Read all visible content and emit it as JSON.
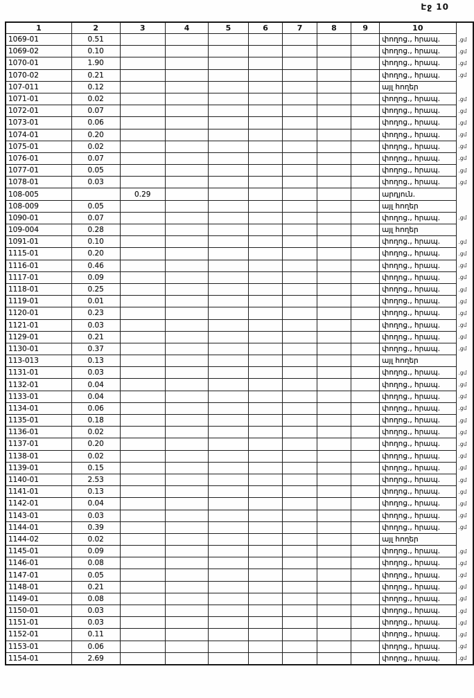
{
  "page": {
    "label": "Էջ 10"
  },
  "table": {
    "headers": [
      "1",
      "2",
      "3",
      "4",
      "5",
      "6",
      "7",
      "8",
      "9",
      "10"
    ],
    "rows": [
      {
        "code": "1069-01",
        "area": "0.51",
        "area3": "",
        "land": "փողոց., հրապ.",
        "edge": ".ցմ"
      },
      {
        "code": "1069-02",
        "area": "0.10",
        "area3": "",
        "land": "փողոց., հրապ.",
        "edge": ".ցմ"
      },
      {
        "code": "1070-01",
        "area": "1.90",
        "area3": "",
        "land": "փողոց., հրապ.",
        "edge": ".ցմ"
      },
      {
        "code": "1070-02",
        "area": "0.21",
        "area3": "",
        "land": "փողոց., հրապ.",
        "edge": ".ցմ"
      },
      {
        "code": "107-011",
        "area": "0.12",
        "area3": "",
        "land": "այլ հողեր",
        "edge": ""
      },
      {
        "code": "1071-01",
        "area": "0.02",
        "area3": "",
        "land": "փողոց., հրապ.",
        "edge": ".ցմ"
      },
      {
        "code": "1072-01",
        "area": "0.07",
        "area3": "",
        "land": "փողոց., հրապ.",
        "edge": ".ցմ"
      },
      {
        "code": "1073-01",
        "area": "0.06",
        "area3": "",
        "land": "փողոց., հրապ.",
        "edge": ".ցմ"
      },
      {
        "code": "1074-01",
        "area": "0.20",
        "area3": "",
        "land": "փողոց., հրապ.",
        "edge": ".ցմ"
      },
      {
        "code": "1075-01",
        "area": "0.02",
        "area3": "",
        "land": "փողոց., հրապ.",
        "edge": ".ցմ"
      },
      {
        "code": "1076-01",
        "area": "0.07",
        "area3": "",
        "land": "փողոց., հրապ.",
        "edge": ".ցմ"
      },
      {
        "code": "1077-01",
        "area": "0.05",
        "area3": "",
        "land": "փողոց., հրապ.",
        "edge": ".ցմ"
      },
      {
        "code": "1078-01",
        "area": "0.03",
        "area3": "",
        "land": "փողոց., հրապ.",
        "edge": ".ցմ"
      },
      {
        "code": "108-005",
        "area": "",
        "area3": "0.29",
        "land": "արդյուն.",
        "edge": ""
      },
      {
        "code": "108-009",
        "area": "0.05",
        "area3": "",
        "land": "այլ հողեր",
        "edge": ""
      },
      {
        "code": "1090-01",
        "area": "0.07",
        "area3": "",
        "land": "փողոց., հրապ.",
        "edge": ".ցմ"
      },
      {
        "code": "109-004",
        "area": "0.28",
        "area3": "",
        "land": "այլ հողեր",
        "edge": ""
      },
      {
        "code": "1091-01",
        "area": "0.10",
        "area3": "",
        "land": "փողոց., հրապ.",
        "edge": ".ցմ"
      },
      {
        "code": "1115-01",
        "area": "0.20",
        "area3": "",
        "land": "փողոց., հրապ.",
        "edge": ".ցմ"
      },
      {
        "code": "1116-01",
        "area": "0.46",
        "area3": "",
        "land": "փողոց., հրապ.",
        "edge": ".ցմ"
      },
      {
        "code": "1117-01",
        "area": "0.09",
        "area3": "",
        "land": "փողոց., հրապ.",
        "edge": ".ցմ"
      },
      {
        "code": "1118-01",
        "area": "0.25",
        "area3": "",
        "land": "փողոց., հրապ.",
        "edge": ".ցմ"
      },
      {
        "code": "1119-01",
        "area": "0.01",
        "area3": "",
        "land": "փողոց., հրապ.",
        "edge": ".ցմ"
      },
      {
        "code": "1120-01",
        "area": "0.23",
        "area3": "",
        "land": "փողոց., հրապ.",
        "edge": ".ցմ"
      },
      {
        "code": "1121-01",
        "area": "0.03",
        "area3": "",
        "land": "փողոց., հրապ.",
        "edge": ".ցմ"
      },
      {
        "code": "1129-01",
        "area": "0.21",
        "area3": "",
        "land": "փողոց., հրապ.",
        "edge": ".ցմ"
      },
      {
        "code": "1130-01",
        "area": "0.37",
        "area3": "",
        "land": "փողոց., հրապ.",
        "edge": ".ցմ"
      },
      {
        "code": "113-013",
        "area": "0.13",
        "area3": "",
        "land": "այլ հողեր",
        "edge": ""
      },
      {
        "code": "1131-01",
        "area": "0.03",
        "area3": "",
        "land": "փողոց., հրապ.",
        "edge": ".ցմ"
      },
      {
        "code": "1132-01",
        "area": "0.04",
        "area3": "",
        "land": "փողոց., հրապ.",
        "edge": ".ցմ"
      },
      {
        "code": "1133-01",
        "area": "0.04",
        "area3": "",
        "land": "փողոց., հրապ.",
        "edge": ".ցմ"
      },
      {
        "code": "1134-01",
        "area": "0.06",
        "area3": "",
        "land": "փողոց., հրապ.",
        "edge": ".ցմ"
      },
      {
        "code": "1135-01",
        "area": "0.18",
        "area3": "",
        "land": "փողոց., հրապ.",
        "edge": ".ցմ"
      },
      {
        "code": "1136-01",
        "area": "0.02",
        "area3": "",
        "land": "փողոց., հրապ.",
        "edge": ".ցմ"
      },
      {
        "code": "1137-01",
        "area": "0.20",
        "area3": "",
        "land": "փողոց., հրապ.",
        "edge": ".ցմ"
      },
      {
        "code": "1138-01",
        "area": "0.02",
        "area3": "",
        "land": "փողոց., հրապ.",
        "edge": ".ցմ"
      },
      {
        "code": "1139-01",
        "area": "0.15",
        "area3": "",
        "land": "փողոց., հրապ.",
        "edge": ".ցմ"
      },
      {
        "code": "1140-01",
        "area": "2.53",
        "area3": "",
        "land": "փողոց., հրապ.",
        "edge": ".ցմ"
      },
      {
        "code": "1141-01",
        "area": "0.13",
        "area3": "",
        "land": "փողոց., հրապ.",
        "edge": ".ցմ"
      },
      {
        "code": "1142-01",
        "area": "0.04",
        "area3": "",
        "land": "փողոց., հրապ.",
        "edge": ".ցմ"
      },
      {
        "code": "1143-01",
        "area": "0.03",
        "area3": "",
        "land": "փողոց., հրապ.",
        "edge": ".ցմ"
      },
      {
        "code": "1144-01",
        "area": "0.39",
        "area3": "",
        "land": "փողոց., հրապ.",
        "edge": ".ցմ"
      },
      {
        "code": "1144-02",
        "area": "0.02",
        "area3": "",
        "land": "այլ հողեր",
        "edge": ""
      },
      {
        "code": "1145-01",
        "area": "0.09",
        "area3": "",
        "land": "փողոց., հրապ.",
        "edge": ".ցմ"
      },
      {
        "code": "1146-01",
        "area": "0.08",
        "area3": "",
        "land": "փողոց., հրապ.",
        "edge": ".ցմ"
      },
      {
        "code": "1147-01",
        "area": "0.05",
        "area3": "",
        "land": "փողոց., հրապ.",
        "edge": ".ցմ"
      },
      {
        "code": "1148-01",
        "area": "0.21",
        "area3": "",
        "land": "փողոց., հրապ.",
        "edge": ".ցմ"
      },
      {
        "code": "1149-01",
        "area": "0.08",
        "area3": "",
        "land": "փողոց., հրապ.",
        "edge": ".ցմ"
      },
      {
        "code": "1150-01",
        "area": "0.03",
        "area3": "",
        "land": "փողոց., հրապ.",
        "edge": ".ցմ"
      },
      {
        "code": "1151-01",
        "area": "0.03",
        "area3": "",
        "land": "փողոց., հրապ.",
        "edge": ".ցմ"
      },
      {
        "code": "1152-01",
        "area": "0.11",
        "area3": "",
        "land": "փողոց., հրապ.",
        "edge": ".ցմ"
      },
      {
        "code": "1153-01",
        "area": "0.06",
        "area3": "",
        "land": "փողոց., հրապ.",
        "edge": ".ցմ"
      },
      {
        "code": "1154-01",
        "area": "2.69",
        "area3": "",
        "land": "փողոց., հրապ.",
        "edge": ".ցմ"
      }
    ]
  }
}
